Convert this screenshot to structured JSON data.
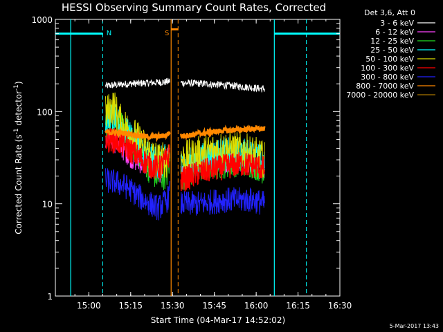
{
  "chart_data": {
    "type": "line",
    "title": "HESSI Observing Summary Count Rates, Corrected",
    "xlabel": "Start Time (04-Mar-17 14:52:02)",
    "ylabel_pre": "Corrected Count Rate (s",
    "ylabel_exp1": "-1",
    "ylabel_mid": " detector",
    "ylabel_exp2": "-1",
    "ylabel_post": ")",
    "x_unit": "minutes since 14:52:02",
    "xlim": [
      -4,
      98
    ],
    "ylim": [
      1,
      1000
    ],
    "yscale": "log",
    "xticks": [
      {
        "label": "15:00",
        "value": 8
      },
      {
        "label": "15:15",
        "value": 23
      },
      {
        "label": "15:30",
        "value": 38
      },
      {
        "label": "15:45",
        "value": 53
      },
      {
        "label": "16:00",
        "value": 68
      },
      {
        "label": "16:15",
        "value": 83
      },
      {
        "label": "16:30",
        "value": 98
      }
    ],
    "yticks": [
      {
        "label": "1",
        "value": 1
      },
      {
        "label": "10",
        "value": 10
      },
      {
        "label": "100",
        "value": 100
      },
      {
        "label": "1000",
        "value": 1000
      }
    ],
    "legend_header": "Det 3,6, Att 0",
    "legend_placement": "right",
    "date_stamp": "5-Mar-2017 13:43",
    "series": [
      {
        "name": "3 - 6 keV",
        "color": "#ffffff",
        "noise": 0.04,
        "segments": [
          [
            [
              14,
              190
            ],
            [
              22,
              200
            ],
            [
              30,
              205
            ],
            [
              36,
              210
            ],
            [
              37,
              215
            ]
          ],
          [
            [
              41,
              205
            ],
            [
              50,
              200
            ],
            [
              60,
              190
            ],
            [
              68,
              180
            ],
            [
              71,
              175
            ]
          ]
        ]
      },
      {
        "name": "6 - 12 keV",
        "color": "#ff44ff",
        "noise": 0.12,
        "segments": [
          [
            [
              14,
              45
            ],
            [
              16,
              50
            ],
            [
              18,
              45
            ],
            [
              24,
              30
            ],
            [
              30,
              25
            ],
            [
              34,
              22
            ],
            [
              36,
              30
            ],
            [
              37,
              36
            ]
          ],
          [
            [
              41,
              20
            ],
            [
              47,
              25
            ],
            [
              55,
              27
            ],
            [
              62,
              30
            ],
            [
              66,
              28
            ],
            [
              71,
              22
            ]
          ]
        ]
      },
      {
        "name": "12 - 25 keV",
        "color": "#22dd22",
        "noise": 0.18,
        "segments": [
          [
            [
              14,
              75
            ],
            [
              17,
              90
            ],
            [
              19,
              70
            ],
            [
              22,
              50
            ],
            [
              26,
              38
            ],
            [
              30,
              24
            ],
            [
              33,
              20
            ],
            [
              36,
              22
            ],
            [
              37,
              30
            ]
          ],
          [
            [
              41,
              20
            ],
            [
              48,
              26
            ],
            [
              56,
              28
            ],
            [
              63,
              30
            ],
            [
              67,
              28
            ],
            [
              71,
              24
            ]
          ]
        ]
      },
      {
        "name": "25 - 50 keV",
        "color": "#00ffff",
        "noise": 0.18,
        "segments": [
          [
            [
              14,
              80
            ],
            [
              17,
              85
            ],
            [
              19,
              70
            ],
            [
              22,
              55
            ],
            [
              26,
              45
            ],
            [
              30,
              30
            ],
            [
              33,
              28
            ],
            [
              36,
              30
            ],
            [
              37,
              40
            ]
          ],
          [
            [
              41,
              25
            ],
            [
              48,
              30
            ],
            [
              56,
              35
            ],
            [
              63,
              35
            ],
            [
              67,
              33
            ],
            [
              71,
              28
            ]
          ]
        ]
      },
      {
        "name": "50 - 100 keV",
        "color": "#dddd00",
        "noise": 0.2,
        "segments": [
          [
            [
              14,
              95
            ],
            [
              17,
              115
            ],
            [
              19,
              80
            ],
            [
              22,
              65
            ],
            [
              26,
              48
            ],
            [
              30,
              35
            ],
            [
              33,
              30
            ],
            [
              36,
              30
            ],
            [
              37,
              45
            ]
          ],
          [
            [
              41,
              30
            ],
            [
              48,
              35
            ],
            [
              56,
              40
            ],
            [
              63,
              38
            ],
            [
              67,
              35
            ],
            [
              71,
              30
            ]
          ]
        ]
      },
      {
        "name": "100 - 300 keV",
        "color": "#ff0000",
        "noise": 0.14,
        "segments": [
          [
            [
              14,
              50
            ],
            [
              18,
              48
            ],
            [
              22,
              40
            ],
            [
              26,
              32
            ],
            [
              30,
              26
            ],
            [
              33,
              24
            ],
            [
              36,
              30
            ],
            [
              37,
              35
            ]
          ],
          [
            [
              41,
              18
            ],
            [
              48,
              22
            ],
            [
              56,
              25
            ],
            [
              63,
              27
            ],
            [
              67,
              26
            ],
            [
              71,
              24
            ]
          ]
        ]
      },
      {
        "name": "300 - 800 keV",
        "color": "#2222ff",
        "noise": 0.14,
        "segments": [
          [
            [
              14,
              18
            ],
            [
              18,
              17
            ],
            [
              22,
              15
            ],
            [
              26,
              12
            ],
            [
              30,
              10
            ],
            [
              33,
              9
            ],
            [
              36,
              11
            ],
            [
              37,
              13
            ]
          ],
          [
            [
              41,
              10
            ],
            [
              48,
              10
            ],
            [
              56,
              11
            ],
            [
              63,
              11
            ],
            [
              67,
              11
            ],
            [
              71,
              10
            ]
          ]
        ]
      },
      {
        "name": "800 - 7000 keV",
        "color": "#ff8800",
        "noise": 0.03,
        "segments": [
          [
            [
              14,
              60
            ],
            [
              22,
              58
            ],
            [
              26,
              55
            ],
            [
              30,
              53
            ],
            [
              34,
              54
            ],
            [
              36,
              56
            ],
            [
              37,
              60
            ]
          ],
          [
            [
              41,
              54
            ],
            [
              48,
              58
            ],
            [
              56,
              62
            ],
            [
              63,
              64
            ],
            [
              67,
              65
            ],
            [
              71,
              65
            ]
          ]
        ]
      },
      {
        "name": "7000 - 20000 keV",
        "color": "#aa7700",
        "noise": 0,
        "segments": []
      }
    ],
    "bars": [
      {
        "label": "",
        "color": "#00ffff",
        "y": 700,
        "segments": [
          [
            -4,
            13
          ],
          [
            74.5,
            98
          ]
        ]
      },
      {
        "label": "",
        "color": "#ff8800",
        "y": 780,
        "segments": [
          [
            37.5,
            40
          ]
        ]
      }
    ],
    "markers": [
      {
        "label": "N",
        "color": "#00ffff",
        "x_solid": 1.5,
        "x_dashed": 13,
        "label_at": 14.3
      },
      {
        "label": "S",
        "color": "#ff8800",
        "x_solid": 37.5,
        "x_dashed": 40,
        "label_at": 35.2
      },
      {
        "label": "",
        "color": "#00ffff",
        "x_solid": 74.5,
        "x_dashed": 86,
        "label_at": null
      }
    ]
  }
}
